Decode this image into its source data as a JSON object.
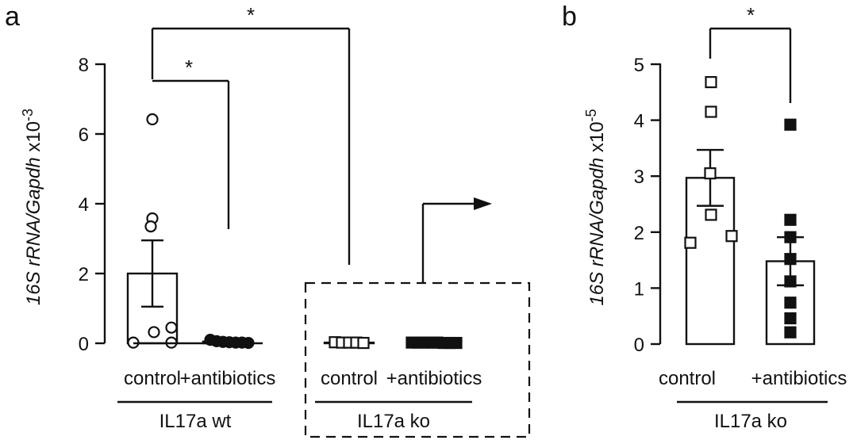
{
  "panel_a": {
    "letter": "a",
    "ylabel_main": "16S rRNA/",
    "ylabel_gene": "Gapdh",
    "ylabel_suffix": " x10",
    "ylabel_exp": "-3",
    "star_top": "*",
    "star_inner": "*",
    "group_wt": "IL17a wt",
    "group_ko": "IL17a ko"
  },
  "panel_b": {
    "letter": "b",
    "ylabel_main": "16S rRNA/",
    "ylabel_gene": "Gapdh",
    "ylabel_suffix": " x10",
    "ylabel_exp": "-5",
    "star": "*",
    "group": "IL17a ko"
  },
  "chart_data": [
    {
      "type": "scatter",
      "panel": "a",
      "ylim": [
        0,
        8
      ],
      "yticks": [
        0,
        2,
        4,
        6,
        8
      ],
      "categories": [
        "control",
        "+antibiotics",
        "control",
        "+antibiotics"
      ],
      "groups": [
        "IL17a wt",
        "IL17a wt",
        "IL17a ko",
        "IL17a ko"
      ],
      "bars": [
        2.0,
        0.05,
        0.02,
        0.02
      ],
      "sem": [
        0.95,
        0.02,
        0.01,
        0.01
      ],
      "markers": [
        "open-circle",
        "filled-circle",
        "open-square",
        "filled-square"
      ],
      "points": [
        [
          6.42,
          3.58,
          3.35,
          0.45,
          0.32,
          0.02,
          0.02
        ],
        [
          0.1,
          0.06,
          0.04,
          0.03,
          0.02,
          0.02,
          0.01
        ],
        [
          0.03,
          0.02,
          0.02,
          0.02,
          0.01
        ],
        [
          0.02,
          0.02,
          0.02,
          0.02,
          0.02,
          0.01,
          0.01,
          0.01
        ]
      ],
      "significance": [
        "*",
        "*"
      ]
    },
    {
      "type": "scatter",
      "panel": "b",
      "ylim": [
        0,
        5
      ],
      "yticks": [
        0,
        1,
        2,
        3,
        4,
        5
      ],
      "categories": [
        "control",
        "+antibiotics"
      ],
      "groups": [
        "IL17a ko",
        "IL17a ko"
      ],
      "bars": [
        2.97,
        1.48
      ],
      "sem": [
        0.5,
        0.43
      ],
      "markers": [
        "open-square",
        "filled-square"
      ],
      "points": [
        [
          4.68,
          4.15,
          3.05,
          2.31,
          1.93,
          1.81
        ],
        [
          3.92,
          2.22,
          1.91,
          1.52,
          1.12,
          0.74,
          0.46,
          0.21
        ]
      ],
      "significance": [
        "*"
      ]
    }
  ]
}
